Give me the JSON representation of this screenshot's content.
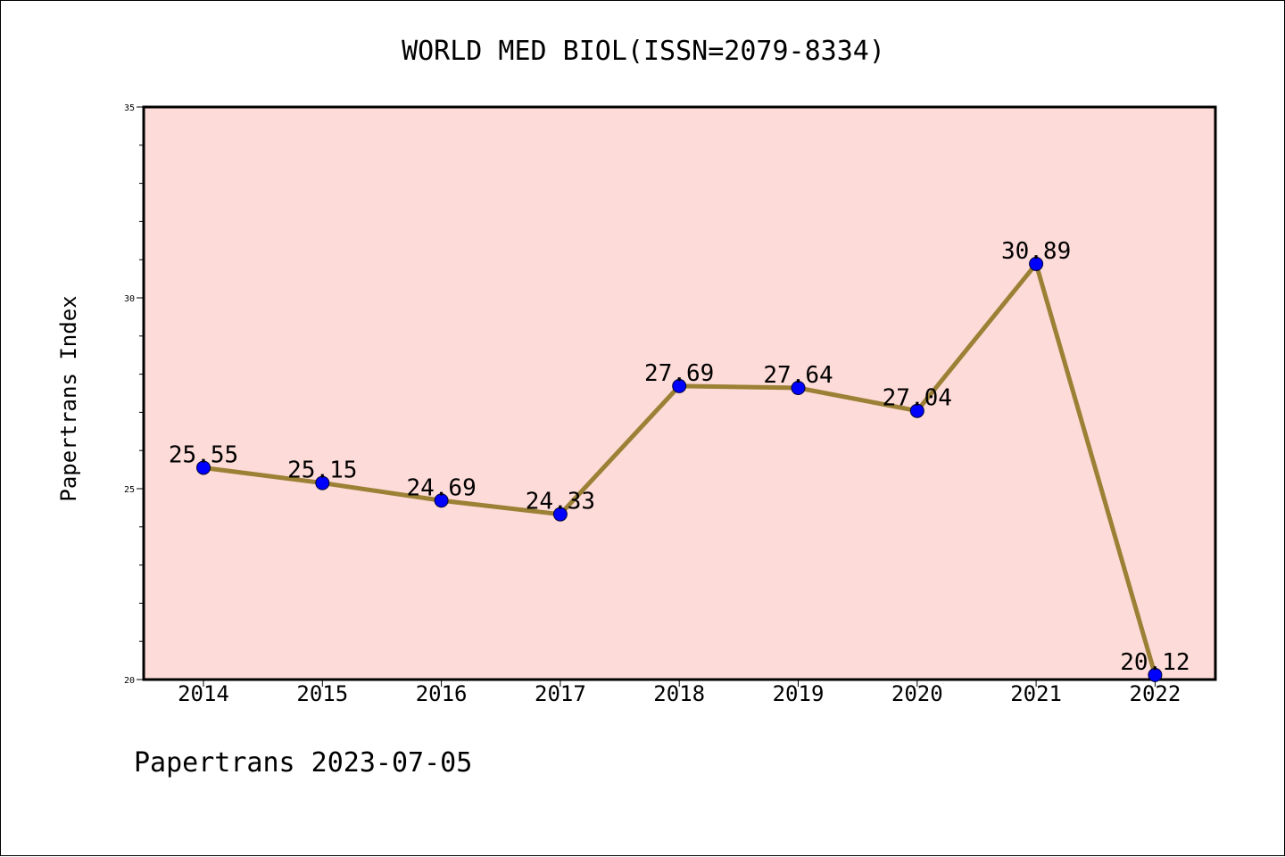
{
  "chart_data": {
    "type": "line",
    "title": "WORLD MED BIOL(ISSN=2079-8334)",
    "ylabel": "Papertrans Index",
    "xlabel": "",
    "categories": [
      "2014",
      "2015",
      "2016",
      "2017",
      "2018",
      "2019",
      "2020",
      "2021",
      "2022"
    ],
    "series": [
      {
        "values": [
          25.55,
          25.15,
          24.69,
          24.33,
          27.69,
          27.64,
          27.04,
          30.89,
          20.12
        ],
        "labels": [
          "25.55",
          "25.15",
          "24.69",
          "24.33",
          "27.69",
          "27.64",
          "27.04",
          "30.89",
          "20.12"
        ]
      }
    ],
    "ylim": [
      20,
      35
    ],
    "yticks": [
      20,
      25,
      30,
      35
    ],
    "ytick_labels": [
      "20",
      "25",
      "30",
      "35"
    ],
    "grid": false,
    "legend": "none",
    "footnote": "Papertrans 2023-07-05",
    "colors": {
      "plot_background": "#fddbd8",
      "line": "#9b8035",
      "marker": "#0000ff",
      "axes": "#000000"
    }
  }
}
